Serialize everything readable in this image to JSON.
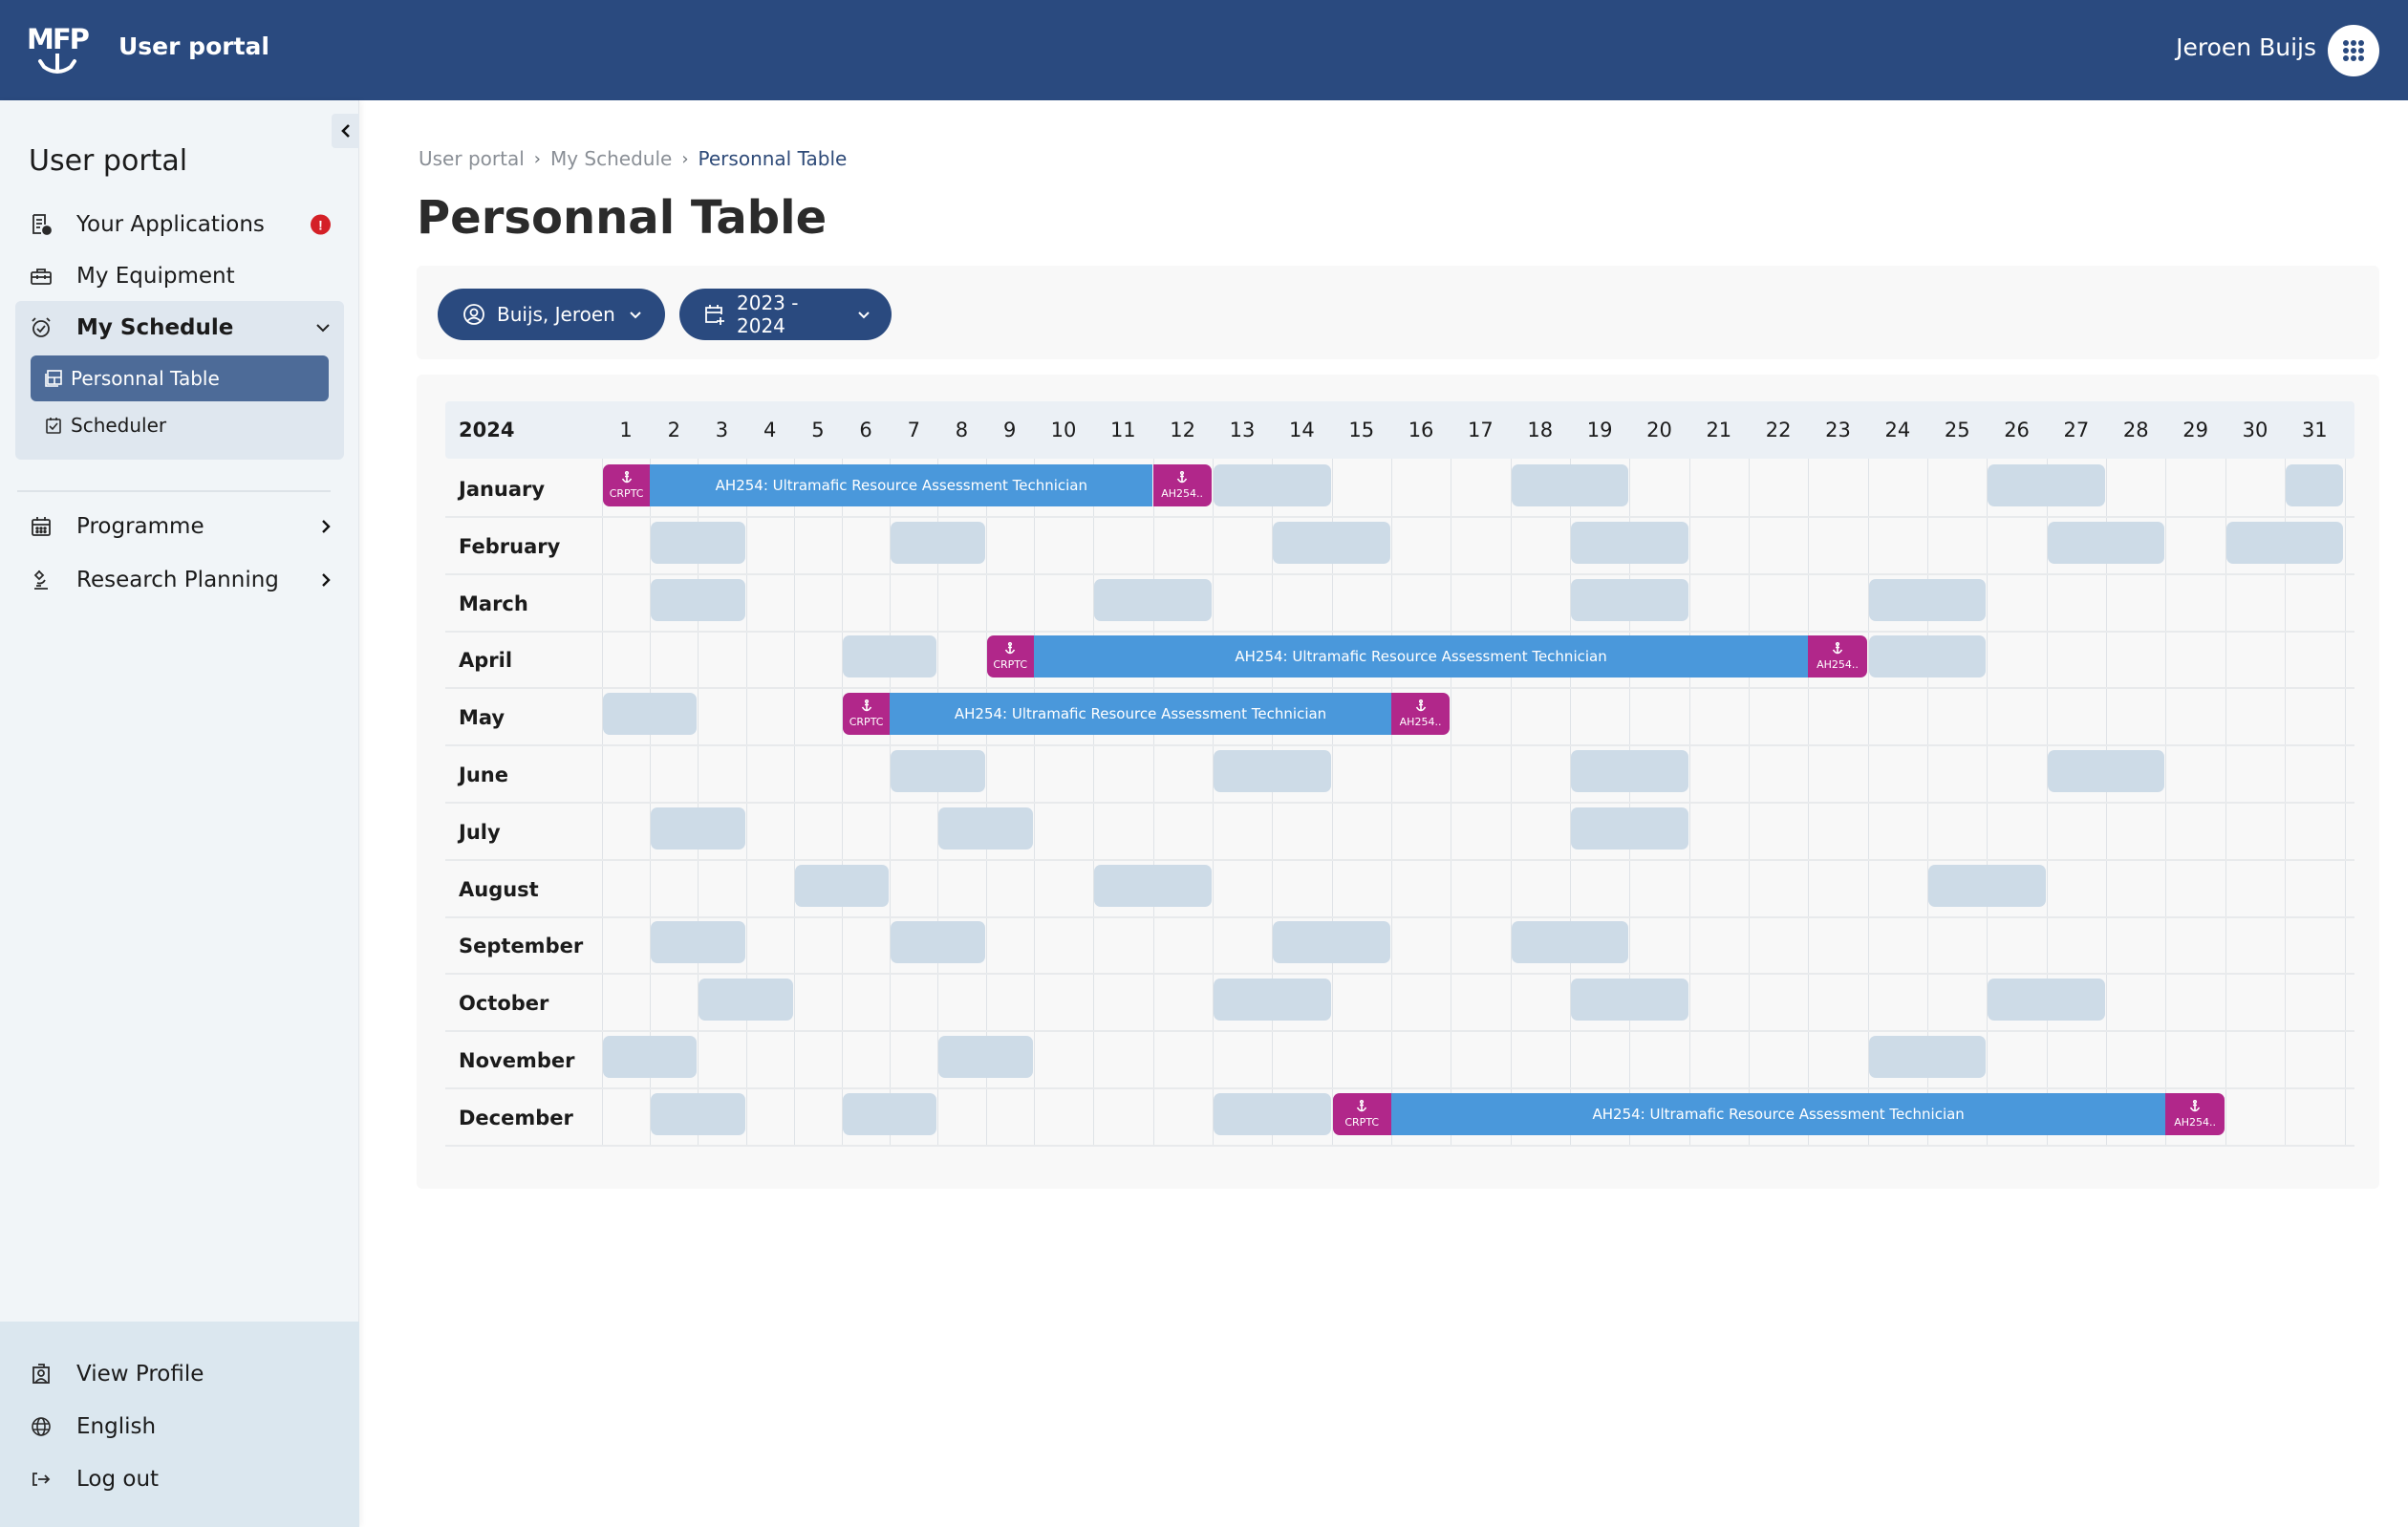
{
  "topbar": {
    "logo_text": "MFP",
    "app_title": "User portal",
    "user_name": "Jeroen Buijs",
    "apps_icon": "grid-dots-icon"
  },
  "sidebar": {
    "title": "User portal",
    "items": [
      {
        "label": "Your Applications",
        "icon": "application-doc-icon",
        "badge": "!"
      },
      {
        "label": "My Equipment",
        "icon": "toolbox-icon"
      },
      {
        "label": "My Schedule",
        "icon": "alarm-clock-icon",
        "expanded": true,
        "children": [
          {
            "label": "Personnal Table",
            "icon": "table-icon",
            "active": true
          },
          {
            "label": "Scheduler",
            "icon": "clipboard-check-icon"
          }
        ]
      },
      {
        "label": "Programme",
        "icon": "calendar-icon"
      },
      {
        "label": "Research Planning",
        "icon": "microscope-icon"
      }
    ],
    "bottom": [
      {
        "label": "View Profile",
        "icon": "id-badge-icon"
      },
      {
        "label": "English",
        "icon": "globe-icon"
      },
      {
        "label": "Log out",
        "icon": "logout-icon"
      }
    ]
  },
  "breadcrumb": [
    "User portal",
    "My Schedule",
    "Personnal Table"
  ],
  "page_title": "Personnal Table",
  "filters": {
    "person": "Buijs, Jeroen",
    "period": "2023 - 2024"
  },
  "schedule": {
    "year": "2024",
    "days": [
      "1",
      "2",
      "3",
      "4",
      "5",
      "6",
      "7",
      "8",
      "9",
      "10",
      "11",
      "12",
      "13",
      "14",
      "15",
      "16",
      "17",
      "18",
      "19",
      "20",
      "21",
      "22",
      "23",
      "24",
      "25",
      "26",
      "27",
      "28",
      "29",
      "30",
      "31"
    ],
    "colors": {
      "block": "#cddbe7",
      "assignment": "#4a98db",
      "anchor": "#b1278a"
    },
    "assignment_title": "AH254: Ultramafic Resource Assessment Technician",
    "start_label": "CRPTC",
    "end_label": "AH254..",
    "months": [
      {
        "name": "January",
        "blocks": [
          [
            13,
            14
          ],
          [
            18,
            19
          ],
          [
            26,
            27
          ],
          [
            31,
            31
          ]
        ],
        "assignment": {
          "start": 1,
          "main": [
            2,
            11
          ],
          "end": 12
        }
      },
      {
        "name": "February",
        "blocks": [
          [
            2,
            3
          ],
          [
            7,
            8
          ],
          [
            14,
            15
          ],
          [
            19,
            20
          ],
          [
            27,
            28
          ],
          [
            30,
            31
          ]
        ]
      },
      {
        "name": "March",
        "blocks": [
          [
            2,
            3
          ],
          [
            11,
            12
          ],
          [
            19,
            20
          ],
          [
            24,
            25
          ]
        ]
      },
      {
        "name": "April",
        "blocks": [
          [
            6,
            7
          ],
          [
            24,
            25
          ]
        ],
        "assignment": {
          "start": 9,
          "main": [
            10,
            22
          ],
          "end": 23
        }
      },
      {
        "name": "May",
        "blocks": [
          [
            1,
            2
          ]
        ],
        "assignment": {
          "start": 6,
          "main": [
            7,
            15
          ],
          "end": 16
        }
      },
      {
        "name": "June",
        "blocks": [
          [
            7,
            8
          ],
          [
            13,
            14
          ],
          [
            19,
            20
          ],
          [
            27,
            28
          ]
        ]
      },
      {
        "name": "July",
        "blocks": [
          [
            2,
            3
          ],
          [
            8,
            9
          ],
          [
            19,
            20
          ]
        ]
      },
      {
        "name": "August",
        "blocks": [
          [
            5,
            6
          ],
          [
            11,
            12
          ],
          [
            25,
            26
          ]
        ]
      },
      {
        "name": "September",
        "blocks": [
          [
            2,
            3
          ],
          [
            7,
            8
          ],
          [
            14,
            15
          ],
          [
            18,
            19
          ]
        ]
      },
      {
        "name": "October",
        "blocks": [
          [
            3,
            4
          ],
          [
            13,
            14
          ],
          [
            19,
            20
          ],
          [
            26,
            27
          ]
        ]
      },
      {
        "name": "November",
        "blocks": [
          [
            1,
            2
          ],
          [
            8,
            9
          ],
          [
            24,
            25
          ]
        ]
      },
      {
        "name": "December",
        "blocks": [
          [
            2,
            3
          ],
          [
            6,
            7
          ],
          [
            13,
            14
          ]
        ],
        "assignment": {
          "start": 15,
          "main": [
            16,
            28
          ],
          "end": 29
        }
      }
    ]
  }
}
